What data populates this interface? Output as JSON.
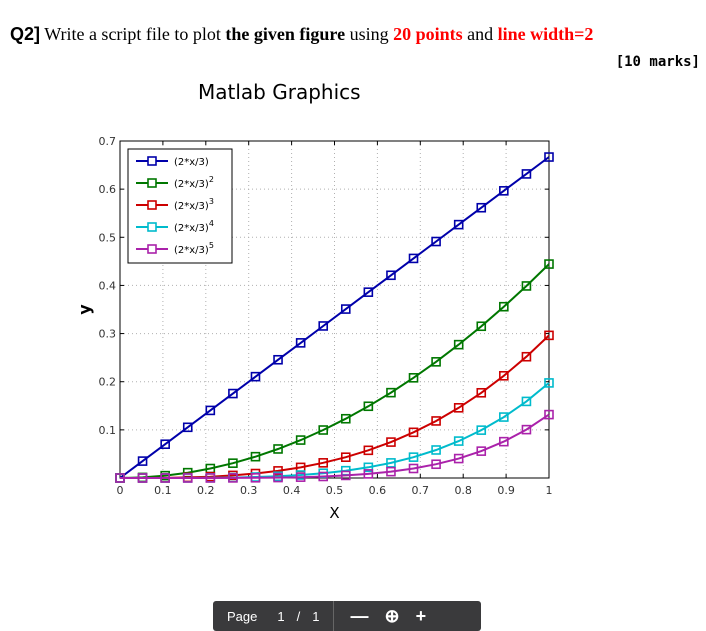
{
  "question": {
    "number": "Q2]",
    "text1": " Write a script file to plot ",
    "bold1": "the given figure",
    "text2": " using ",
    "red1": "20 points",
    "text3": " and ",
    "red2": "line width=2",
    "marks": "[10 marks]"
  },
  "chart_data": {
    "type": "line",
    "title": "Matlab Graphics",
    "xlabel": "X",
    "ylabel": "y",
    "xlim": [
      0,
      1
    ],
    "ylim": [
      0,
      0.7
    ],
    "xticks": [
      "0",
      "0.1",
      "0.2",
      "0.3",
      "0.4",
      "0.5",
      "0.6",
      "0.7",
      "0.8",
      "0.9",
      "1"
    ],
    "yticks": [
      "",
      "0.1",
      "0.2",
      "0.3",
      "0.4",
      "0.5",
      "0.6",
      "0.7"
    ],
    "grid": true,
    "legend_position": "top-left",
    "x": [
      0,
      0.0526,
      0.1053,
      0.1579,
      0.2105,
      0.2632,
      0.3158,
      0.3684,
      0.4211,
      0.4737,
      0.5263,
      0.5789,
      0.6316,
      0.6842,
      0.7368,
      0.7895,
      0.8421,
      0.8947,
      0.9474,
      1
    ],
    "series": [
      {
        "name": "(2*x/3)",
        "power": 1,
        "color": "#0000aa",
        "values": [
          0,
          0.0351,
          0.0702,
          0.1053,
          0.1404,
          0.1754,
          0.2105,
          0.2456,
          0.2807,
          0.3158,
          0.3509,
          0.386,
          0.4211,
          0.4561,
          0.4912,
          0.5263,
          0.5614,
          0.5965,
          0.6316,
          0.6667
        ]
      },
      {
        "name": "(2*x/3)",
        "power": 2,
        "color": "#007700",
        "values": [
          0,
          0.0012,
          0.0049,
          0.0111,
          0.0197,
          0.0308,
          0.0443,
          0.0603,
          0.0788,
          0.0997,
          0.1231,
          0.149,
          0.1773,
          0.2081,
          0.2413,
          0.277,
          0.3152,
          0.3558,
          0.3989,
          0.4444
        ]
      },
      {
        "name": "(2*x/3)",
        "power": 3,
        "color": "#cc0000",
        "values": [
          0,
          4e-05,
          0.0003,
          0.0012,
          0.0028,
          0.0054,
          0.0093,
          0.0148,
          0.0221,
          0.0315,
          0.0432,
          0.0575,
          0.0746,
          0.0949,
          0.1185,
          0.1458,
          0.177,
          0.2123,
          0.2519,
          0.2963
        ]
      },
      {
        "name": "(2*x/3)",
        "power": 4,
        "color": "#00bbcc",
        "values": [
          0,
          1.5e-06,
          2e-05,
          0.0001,
          0.0004,
          0.0009,
          0.002,
          0.0036,
          0.0062,
          0.0099,
          0.0152,
          0.0222,
          0.0314,
          0.0433,
          0.0582,
          0.0767,
          0.0994,
          0.1266,
          0.1591,
          0.1975
        ]
      },
      {
        "name": "(2*x/3)",
        "power": 5,
        "color": "#aa22aa",
        "values": [
          0,
          5e-08,
          1.7e-06,
          1.3e-05,
          5.5e-05,
          0.00017,
          0.00041,
          0.00089,
          0.00174,
          0.00315,
          0.00533,
          0.00857,
          0.01322,
          0.01975,
          0.02859,
          0.04037,
          0.05578,
          0.07551,
          0.10048,
          0.13169
        ]
      }
    ]
  },
  "viewer": {
    "page_label": "Page",
    "page_num": "1",
    "page_sep": "/",
    "page_total": "1",
    "minus": "—",
    "zoom": "⊕",
    "plus": "+"
  }
}
